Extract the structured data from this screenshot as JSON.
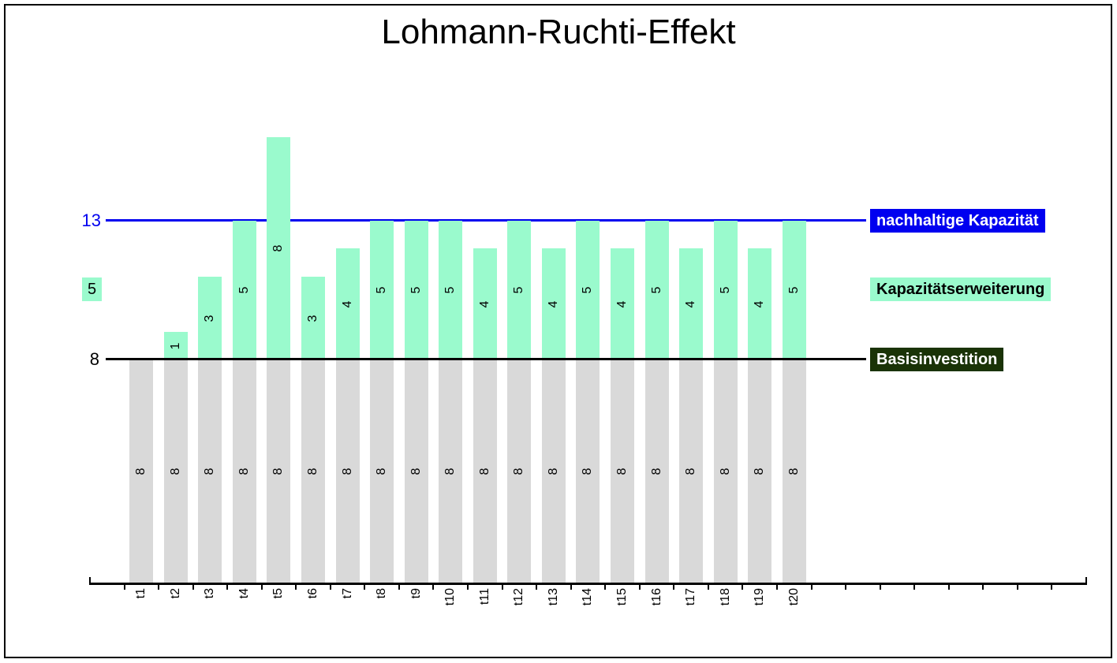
{
  "title": "Lohmann-Ruchti-Effekt",
  "y_annotations": {
    "sustainable": {
      "text": "13",
      "color": "#0000f0"
    },
    "expansion_unit": {
      "text": "5",
      "bg": "#9afacd",
      "color": "#000000"
    },
    "base": {
      "text": "8",
      "color": "#000000"
    }
  },
  "legend": {
    "sustainable": {
      "label": "nachhaltige Kapazität",
      "bg": "#0000f0",
      "color": "#ffffff"
    },
    "expansion": {
      "label": "Kapazitätserweiterung",
      "bg": "#9afacd",
      "color": "#000000"
    },
    "base": {
      "label": "Basisinvestition",
      "bg": "#1a3307",
      "color": "#ffffff"
    }
  },
  "chart_data": {
    "type": "bar",
    "stacked": true,
    "title": "Lohmann-Ruchti-Effekt",
    "categories": [
      "t1",
      "t2",
      "t3",
      "t4",
      "t5",
      "t6",
      "t7",
      "t8",
      "t9",
      "t10",
      "t11",
      "t12",
      "t13",
      "t14",
      "t15",
      "t16",
      "t17",
      "t18",
      "t19",
      "t20"
    ],
    "series": [
      {
        "name": "Basisinvestition",
        "color": "#d9d9d9",
        "label_color": "#000000",
        "values": [
          8,
          8,
          8,
          8,
          8,
          8,
          8,
          8,
          8,
          8,
          8,
          8,
          8,
          8,
          8,
          8,
          8,
          8,
          8,
          8
        ]
      },
      {
        "name": "Kapazitätserweiterung",
        "color": "#9afacd",
        "label_color": "#000000",
        "values": [
          0,
          1,
          3,
          5,
          8,
          3,
          4,
          5,
          5,
          5,
          4,
          5,
          4,
          5,
          4,
          5,
          4,
          5,
          4,
          5
        ]
      }
    ],
    "reference_lines": [
      {
        "name": "nachhaltige Kapazität",
        "value": 13,
        "color": "#0000f0"
      },
      {
        "name": "Basisinvestition",
        "value": 8,
        "color": "#000000"
      }
    ],
    "bar_labels_shown": true,
    "ylim": [
      0,
      16
    ],
    "x_extra_slots": 8,
    "legend_position": "right"
  }
}
